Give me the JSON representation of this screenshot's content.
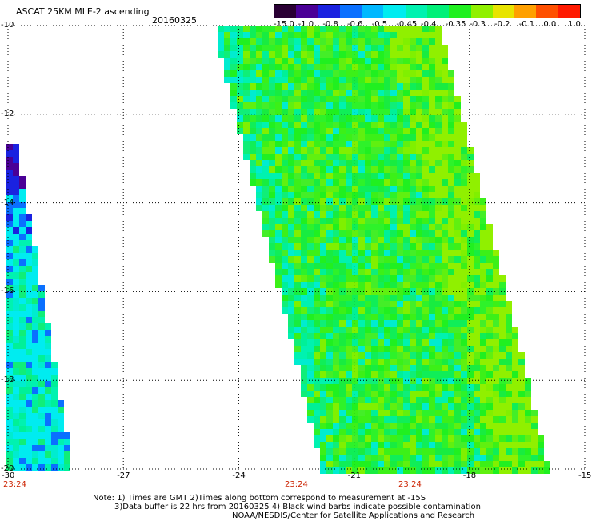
{
  "header": {
    "title": "ASCAT 25KM MLE-2 ascending",
    "date": "20160325"
  },
  "colorbar": {
    "labels": [
      "-15.0",
      "-1.0",
      "-0.8",
      "-0.6",
      "-0.5",
      "-0.45",
      "-0.4",
      "-0.35",
      "-0.3",
      "-0.2",
      "-0.1",
      "0.0",
      "1.0"
    ],
    "colors": [
      "#2a0034",
      "#4a0096",
      "#1a22e0",
      "#0a70ff",
      "#00b8ff",
      "#00ecf0",
      "#00f2b0",
      "#00f078",
      "#20f020",
      "#90f000",
      "#e8e400",
      "#ffa000",
      "#ff5000",
      "#ff1a00"
    ]
  },
  "axes": {
    "x_ticks": [
      "-30",
      "-27",
      "-24",
      "-21",
      "-18",
      "-15"
    ],
    "y_ticks": [
      "-10",
      "-12",
      "-14",
      "-16",
      "-18",
      "-20"
    ],
    "x_range": [
      -30,
      -15
    ],
    "y_range": [
      -20,
      -10
    ]
  },
  "times": [
    "23:24",
    "23:24",
    "23:24"
  ],
  "notes": [
    "Note: 1) Times are GMT 2)Times along bottom correspond to measurement at -15S",
    "3)Data buffer is 22 hrs from 20160325 4) Black wind barbs indicate possible contamination",
    "NOAA/NESDIS/Center for Satellite Applications and Research"
  ]
}
